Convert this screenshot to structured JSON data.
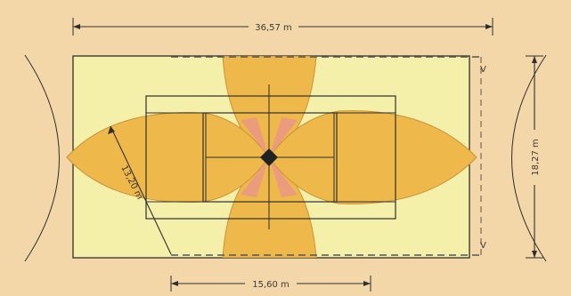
{
  "diagram": {
    "dimensions": {
      "overall_length": "36,57 m",
      "overall_width": "18,27 m",
      "radius": "13,20 m",
      "bottom_length": "15,60 m"
    },
    "markers": {
      "top_right": "V",
      "bottom_right": "V"
    },
    "colors": {
      "background": "#F4D7A8",
      "court": "#F4F0A9",
      "lens": "#EEB94A",
      "lens_overlap": "#E99A7E",
      "center_marker": "#222222",
      "line": "#2F2F2F"
    }
  }
}
